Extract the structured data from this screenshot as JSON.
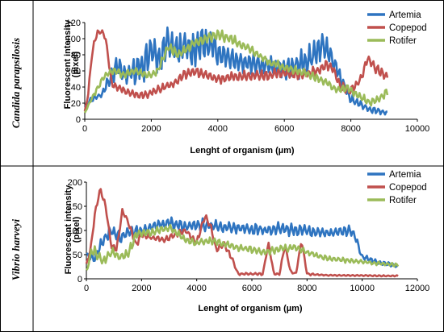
{
  "series_colors": {
    "Artemia": "#2e74c0",
    "Copepod": "#c0504d",
    "Rotifer": "#9bbb59"
  },
  "chart_data": [
    {
      "type": "line",
      "panel_label": "Candida parapsilosis",
      "xlabel": "Lenght of organism (µm)",
      "ylabel_line1": "Fluorescent intensity",
      "ylabel_line2": "(pixel)",
      "xlim": [
        0,
        10000
      ],
      "ylim": [
        0,
        120
      ],
      "xticks": [
        0,
        2000,
        4000,
        6000,
        8000,
        10000
      ],
      "yticks": [
        0,
        20,
        40,
        60,
        80,
        100,
        120
      ],
      "grid": false,
      "legend_position": "top-right",
      "series": [
        {
          "name": "Artemia",
          "x": [
            0,
            200,
            500,
            800,
            1000,
            1200,
            1500,
            1800,
            2000,
            2200,
            2500,
            2800,
            3000,
            3200,
            3500,
            3800,
            4000,
            4200,
            4500,
            4800,
            5000,
            5300,
            5600,
            6000,
            6300,
            6600,
            7000,
            7200,
            7400,
            7600,
            7800,
            8000,
            8300,
            8600,
            8900,
            9100
          ],
          "y": [
            15,
            25,
            30,
            55,
            65,
            55,
            60,
            70,
            90,
            70,
            95,
            85,
            90,
            85,
            95,
            90,
            85,
            80,
            75,
            70,
            72,
            68,
            65,
            62,
            66,
            70,
            85,
            90,
            80,
            60,
            40,
            25,
            18,
            12,
            10,
            7
          ],
          "osc": [
            0,
            3,
            3,
            8,
            12,
            10,
            15,
            18,
            20,
            18,
            18,
            18,
            18,
            18,
            18,
            15,
            15,
            15,
            12,
            12,
            12,
            10,
            10,
            10,
            12,
            15,
            15,
            12,
            12,
            10,
            8,
            5,
            4,
            3,
            3,
            2
          ]
        },
        {
          "name": "Copepod",
          "x": [
            0,
            100,
            200,
            300,
            450,
            600,
            700,
            800,
            1000,
            1200,
            1500,
            1800,
            2000,
            2300,
            2500,
            2700,
            3000,
            3300,
            3600,
            4000,
            4500,
            5000,
            5500,
            6000,
            6500,
            7000,
            7300,
            7500,
            7700,
            8000,
            8300,
            8500,
            8700,
            9000,
            9100
          ],
          "y": [
            10,
            30,
            75,
            100,
            110,
            105,
            80,
            45,
            40,
            35,
            30,
            30,
            33,
            38,
            42,
            45,
            55,
            60,
            55,
            50,
            52,
            55,
            55,
            58,
            55,
            60,
            68,
            60,
            40,
            35,
            50,
            75,
            65,
            55,
            52
          ],
          "osc": [
            0,
            2,
            3,
            4,
            4,
            4,
            4,
            4,
            4,
            4,
            4,
            4,
            4,
            4,
            4,
            4,
            5,
            5,
            5,
            5,
            5,
            5,
            5,
            5,
            5,
            5,
            5,
            5,
            5,
            5,
            5,
            5,
            5,
            5,
            5
          ]
        },
        {
          "name": "Rotifer",
          "x": [
            0,
            200,
            400,
            600,
            900,
            1200,
            1500,
            1800,
            2000,
            2200,
            2500,
            2800,
            3000,
            3300,
            3600,
            4000,
            4400,
            4800,
            5200,
            5600,
            6000,
            6400,
            6800,
            7000,
            7300,
            7600,
            7900,
            8200,
            8600,
            9000,
            9100
          ],
          "y": [
            8,
            25,
            40,
            55,
            60,
            55,
            60,
            55,
            55,
            60,
            90,
            80,
            85,
            95,
            100,
            105,
            100,
            90,
            80,
            70,
            65,
            60,
            55,
            50,
            45,
            35,
            40,
            30,
            20,
            30,
            35
          ],
          "osc": [
            0,
            2,
            3,
            4,
            4,
            4,
            4,
            4,
            4,
            4,
            5,
            5,
            5,
            5,
            5,
            5,
            5,
            5,
            4,
            4,
            4,
            4,
            4,
            4,
            4,
            4,
            4,
            4,
            4,
            4,
            4
          ]
        }
      ]
    },
    {
      "type": "line",
      "panel_label": "Vibrio harveyi",
      "xlabel": "Lenght of organism (µm)",
      "ylabel_line1": "Fluorescent intensity",
      "ylabel_line2": "(pixel)",
      "xlim": [
        0,
        12000
      ],
      "ylim": [
        0,
        200
      ],
      "xticks": [
        0,
        2000,
        4000,
        6000,
        8000,
        10000,
        12000
      ],
      "yticks": [
        0,
        50,
        100,
        150,
        200
      ],
      "grid": false,
      "legend_position": "top-right",
      "series": [
        {
          "name": "Artemia",
          "x": [
            0,
            300,
            600,
            900,
            1200,
            1500,
            2000,
            2500,
            3000,
            3500,
            4000,
            4500,
            5000,
            5500,
            6000,
            6500,
            7000,
            7500,
            8000,
            8500,
            9000,
            9500,
            9700,
            10000,
            10500,
            11000,
            11300
          ],
          "y": [
            50,
            40,
            80,
            100,
            85,
            95,
            100,
            110,
            115,
            110,
            112,
            110,
            105,
            105,
            102,
            100,
            105,
            100,
            100,
            95,
            95,
            100,
            95,
            45,
            35,
            30,
            25
          ],
          "osc": [
            3,
            8,
            10,
            10,
            10,
            10,
            10,
            10,
            10,
            10,
            10,
            10,
            10,
            10,
            10,
            10,
            10,
            10,
            10,
            8,
            8,
            8,
            6,
            5,
            4,
            3,
            2
          ]
        },
        {
          "name": "Copepod",
          "x": [
            0,
            150,
            300,
            500,
            700,
            900,
            1100,
            1300,
            1500,
            1800,
            2000,
            2400,
            2800,
            3200,
            3600,
            4000,
            4300,
            4500,
            4700,
            5000,
            5300,
            5500,
            6000,
            6400,
            6600,
            6800,
            7000,
            7200,
            7400,
            7600,
            7800,
            8000,
            8500,
            9000,
            10000,
            11000,
            11300
          ],
          "y": [
            30,
            60,
            130,
            185,
            150,
            70,
            60,
            140,
            120,
            70,
            90,
            85,
            80,
            90,
            100,
            75,
            130,
            110,
            60,
            70,
            40,
            10,
            10,
            10,
            75,
            10,
            10,
            70,
            15,
            10,
            80,
            10,
            8,
            7,
            7,
            6,
            6
          ],
          "osc": [
            2,
            4,
            5,
            5,
            5,
            5,
            5,
            5,
            5,
            5,
            5,
            5,
            5,
            5,
            5,
            5,
            5,
            5,
            5,
            5,
            4,
            2,
            2,
            2,
            3,
            2,
            2,
            3,
            2,
            2,
            3,
            2,
            1,
            1,
            1,
            1,
            1
          ]
        },
        {
          "name": "Rotifer",
          "x": [
            0,
            200,
            400,
            600,
            900,
            1200,
            1500,
            1800,
            2000,
            2300,
            2600,
            3000,
            3300,
            3600,
            4000,
            4500,
            5000,
            5500,
            6000,
            6500,
            7000,
            7500,
            8000,
            8500,
            9000,
            9500,
            10000,
            10500,
            11000,
            11300
          ],
          "y": [
            15,
            60,
            50,
            35,
            55,
            45,
            50,
            90,
            95,
            95,
            100,
            105,
            95,
            80,
            75,
            78,
            72,
            65,
            60,
            55,
            62,
            65,
            55,
            45,
            40,
            38,
            35,
            32,
            30,
            28
          ],
          "osc": [
            3,
            10,
            10,
            8,
            10,
            8,
            8,
            8,
            6,
            6,
            6,
            6,
            6,
            6,
            6,
            6,
            6,
            6,
            6,
            6,
            6,
            6,
            5,
            4,
            4,
            4,
            3,
            3,
            3,
            3
          ]
        }
      ]
    }
  ]
}
